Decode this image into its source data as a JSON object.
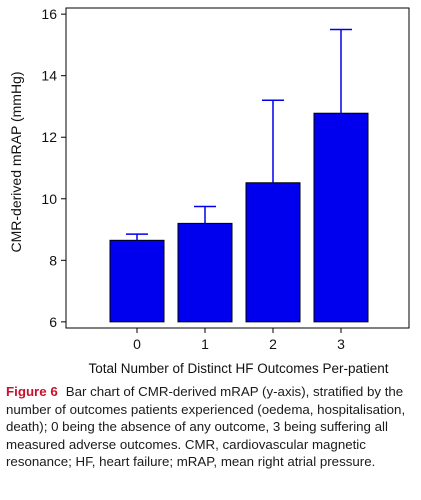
{
  "chart_data": {
    "type": "bar",
    "categories": [
      "0",
      "1",
      "2",
      "3"
    ],
    "values": [
      8.65,
      9.2,
      10.52,
      12.78
    ],
    "error_upper": [
      8.85,
      9.75,
      13.2,
      15.5
    ],
    "xlabel": "Total Number of Distinct HF Outcomes Per-patient",
    "ylabel": "CMR-derived mRAP (mmHg)",
    "ylim": [
      5.8,
      16.2
    ],
    "yticks": [
      6,
      8,
      10,
      12,
      14,
      16
    ],
    "grid": false,
    "colors": {
      "bar": "#0000ee",
      "bar_edge": "#000000",
      "error": "#0000ee",
      "axis": "#000000"
    }
  },
  "caption": {
    "label": "Figure 6",
    "text": "Bar chart of CMR-derived mRAP (y-axis), stratified by the number of outcomes patients experienced (oedema, hospitalisation, death); 0 being the absence of any outcome, 3 being suffering all measured adverse outcomes. CMR, cardiovascular magnetic resonance; HF, heart failure; mRAP, mean right atrial pressure."
  }
}
